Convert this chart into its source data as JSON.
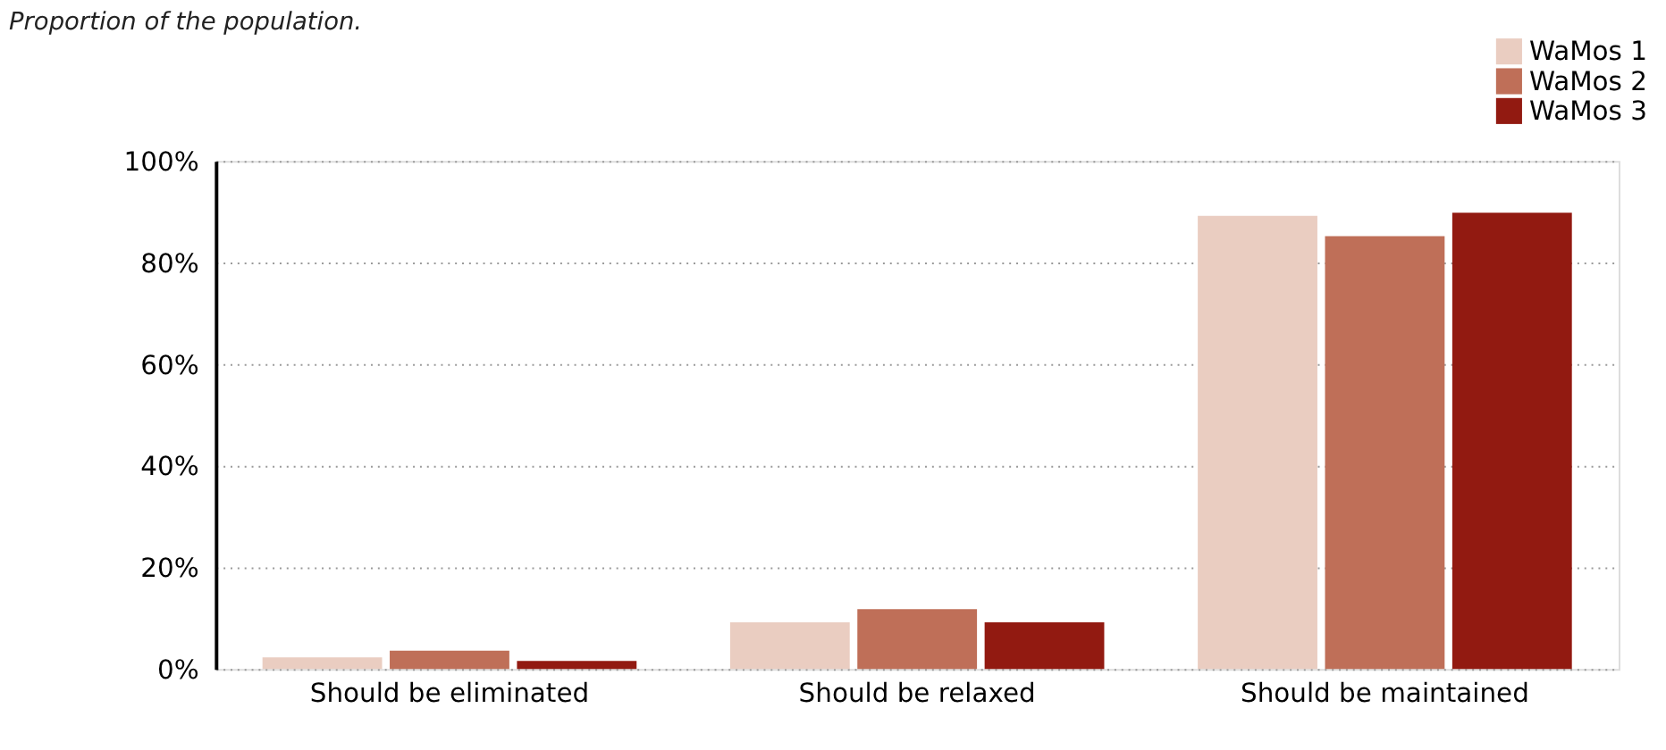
{
  "chart_data": {
    "type": "bar",
    "title": "Proportion of the population.",
    "categories": [
      "Should be eliminated",
      "Should be relaxed",
      "Should be maintained"
    ],
    "series": [
      {
        "name": "WaMos 1",
        "color": "#eacdc1",
        "values": [
          2.3,
          9.2,
          89.2
        ]
      },
      {
        "name": "WaMos 2",
        "color": "#bf6f58",
        "values": [
          3.6,
          11.8,
          85.2
        ]
      },
      {
        "name": "WaMos 3",
        "color": "#921a11",
        "values": [
          1.6,
          9.2,
          89.8
        ]
      }
    ],
    "ylim": [
      0,
      100
    ],
    "yticks": [
      {
        "value": 0,
        "label": "0%"
      },
      {
        "value": 20,
        "label": "20%"
      },
      {
        "value": 40,
        "label": "40%"
      },
      {
        "value": 60,
        "label": "60%"
      },
      {
        "value": 80,
        "label": "80%"
      },
      {
        "value": 100,
        "label": "100%"
      }
    ],
    "grid": "y",
    "legend": "top right"
  }
}
